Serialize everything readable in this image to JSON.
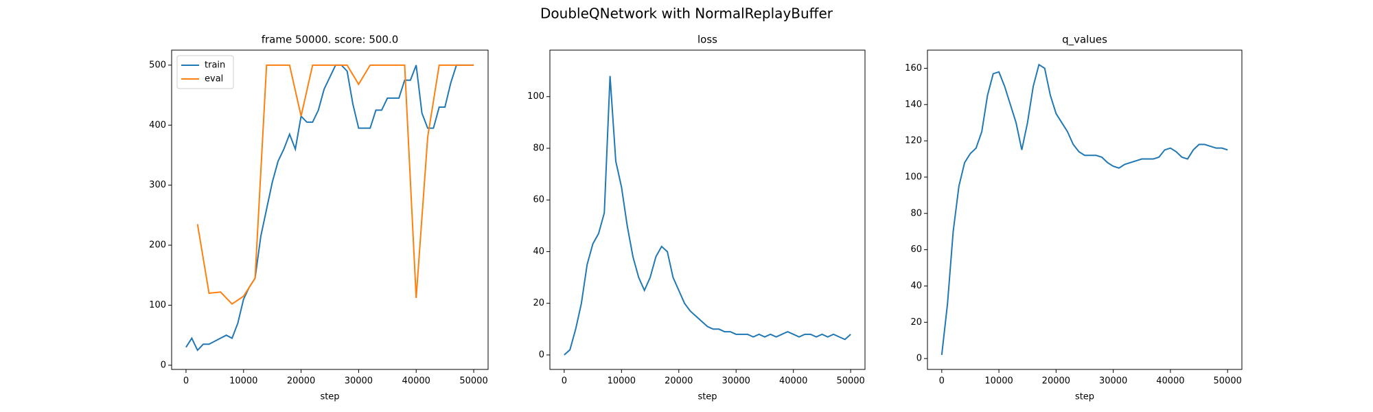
{
  "title": "DoubleQNetwork with NormalReplayBuffer",
  "chart_data": [
    {
      "type": "line",
      "title": "frame 50000. score: 500.0",
      "xlabel": "step",
      "legend": "upper left",
      "xlim": [
        -2500,
        52500
      ],
      "ylim": [
        -7,
        525
      ],
      "xticks": [
        0,
        10000,
        20000,
        30000,
        40000,
        50000
      ],
      "yticks": [
        0,
        100,
        200,
        300,
        400,
        500
      ],
      "series": [
        {
          "name": "train",
          "color": "#1f77b4",
          "x": [
            0,
            1000,
            2000,
            3000,
            4000,
            5000,
            6000,
            7000,
            8000,
            9000,
            10000,
            11000,
            12000,
            13000,
            14000,
            15000,
            16000,
            17000,
            18000,
            19000,
            20000,
            21000,
            22000,
            23000,
            24000,
            25000,
            26000,
            27000,
            28000,
            29000,
            30000,
            31000,
            32000,
            33000,
            34000,
            35000,
            36000,
            37000,
            38000,
            39000,
            40000,
            41000,
            42000,
            43000,
            44000,
            45000,
            46000,
            47000,
            48000,
            49000,
            50000
          ],
          "values": [
            30,
            45,
            25,
            35,
            35,
            40,
            45,
            50,
            45,
            70,
            110,
            130,
            145,
            215,
            260,
            305,
            340,
            360,
            385,
            360,
            415,
            405,
            405,
            425,
            460,
            480,
            500,
            500,
            490,
            435,
            395,
            395,
            395,
            425,
            425,
            445,
            445,
            445,
            475,
            475,
            500,
            420,
            395,
            395,
            430,
            430,
            470,
            500,
            500,
            500,
            500
          ]
        },
        {
          "name": "eval",
          "color": "#ff7f0e",
          "x": [
            2000,
            4000,
            6000,
            8000,
            10000,
            12000,
            14000,
            16000,
            18000,
            20000,
            22000,
            24000,
            26000,
            28000,
            30000,
            32000,
            34000,
            36000,
            38000,
            40000,
            42000,
            44000,
            46000,
            48000,
            50000
          ],
          "values": [
            235,
            120,
            122,
            102,
            115,
            145,
            500,
            500,
            500,
            415,
            500,
            500,
            500,
            500,
            468,
            500,
            500,
            500,
            500,
            112,
            380,
            500,
            500,
            500,
            500
          ]
        }
      ]
    },
    {
      "type": "line",
      "title": "loss",
      "xlabel": "step",
      "xlim": [
        -2500,
        52500
      ],
      "ylim": [
        -5.6,
        118
      ],
      "xticks": [
        0,
        10000,
        20000,
        30000,
        40000,
        50000
      ],
      "yticks": [
        0,
        20,
        40,
        60,
        80,
        100
      ],
      "series": [
        {
          "color": "#1f77b4",
          "x": [
            0,
            1000,
            2000,
            3000,
            4000,
            5000,
            6000,
            7000,
            8000,
            9000,
            10000,
            11000,
            12000,
            13000,
            14000,
            15000,
            16000,
            17000,
            18000,
            19000,
            20000,
            21000,
            22000,
            23000,
            24000,
            25000,
            26000,
            27000,
            28000,
            29000,
            30000,
            31000,
            32000,
            33000,
            34000,
            35000,
            36000,
            37000,
            38000,
            39000,
            40000,
            41000,
            42000,
            43000,
            44000,
            45000,
            46000,
            47000,
            48000,
            49000,
            50000
          ],
          "values": [
            0,
            2,
            10,
            20,
            35,
            43,
            47,
            55,
            108,
            75,
            65,
            50,
            38,
            30,
            25,
            30,
            38,
            42,
            40,
            30,
            25,
            20,
            17,
            15,
            13,
            11,
            10,
            10,
            9,
            9,
            8,
            8,
            8,
            7,
            8,
            7,
            8,
            7,
            8,
            9,
            8,
            7,
            8,
            8,
            7,
            8,
            7,
            8,
            7,
            6,
            8
          ]
        }
      ]
    },
    {
      "type": "line",
      "title": "q_values",
      "xlabel": "step",
      "xlim": [
        -2500,
        52500
      ],
      "ylim": [
        -6,
        170
      ],
      "xticks": [
        0,
        10000,
        20000,
        30000,
        40000,
        50000
      ],
      "yticks": [
        0,
        20,
        40,
        60,
        80,
        100,
        120,
        140,
        160
      ],
      "series": [
        {
          "color": "#1f77b4",
          "x": [
            0,
            1000,
            2000,
            3000,
            4000,
            5000,
            6000,
            7000,
            8000,
            9000,
            10000,
            11000,
            12000,
            13000,
            14000,
            15000,
            16000,
            17000,
            18000,
            19000,
            20000,
            21000,
            22000,
            23000,
            24000,
            25000,
            26000,
            27000,
            28000,
            29000,
            30000,
            31000,
            32000,
            33000,
            34000,
            35000,
            36000,
            37000,
            38000,
            39000,
            40000,
            41000,
            42000,
            43000,
            44000,
            45000,
            46000,
            47000,
            48000,
            49000,
            50000
          ],
          "values": [
            2,
            30,
            70,
            95,
            108,
            113,
            116,
            125,
            145,
            157,
            158,
            150,
            140,
            130,
            115,
            130,
            150,
            162,
            160,
            145,
            135,
            130,
            125,
            118,
            114,
            112,
            112,
            112,
            111,
            108,
            106,
            105,
            107,
            108,
            109,
            110,
            110,
            110,
            111,
            115,
            116,
            114,
            111,
            110,
            115,
            118,
            118,
            117,
            116,
            116,
            115
          ]
        }
      ]
    }
  ]
}
